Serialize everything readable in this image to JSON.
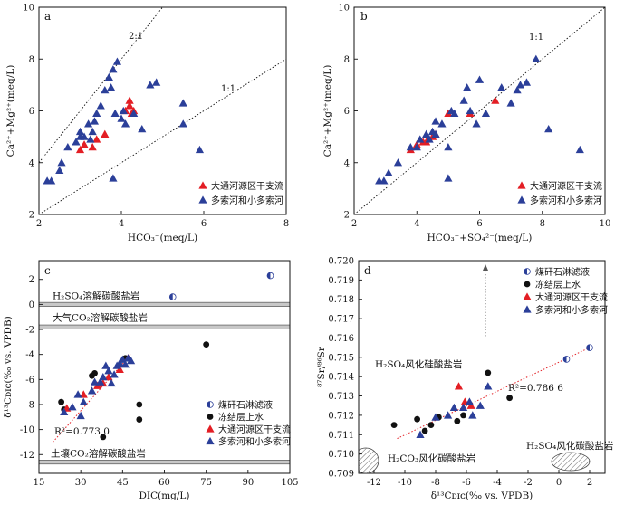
{
  "figure": {
    "colors": {
      "red": "#e31e24",
      "blue": "#2b3f99",
      "black": "#111111",
      "trend": "#e31e24"
    }
  },
  "chart_data": [
    {
      "type": "scatter",
      "panel": "a",
      "xlabel": "HCO₃⁻(meq/L)",
      "ylabel": "Ca²⁺+Mg²⁺(meq/L)",
      "xlim": [
        2,
        8
      ],
      "ylim": [
        2,
        10
      ],
      "xticks": [
        "2",
        "4",
        "6",
        "8"
      ],
      "yticks": [
        "2",
        "4",
        "6",
        "8",
        "10"
      ],
      "reference_lines": [
        {
          "label": "2:1",
          "slope": 2,
          "intercept": 0
        },
        {
          "label": "1:1",
          "slope": 1,
          "intercept": 0
        }
      ],
      "legend": [
        "大通河源区干支流",
        "多索河和小多索河"
      ],
      "series": [
        {
          "name": "大通河源区干支流",
          "marker": "triangle",
          "color": "red",
          "x": [
            3.0,
            3.1,
            3.3,
            3.4,
            3.6,
            4.1,
            4.2,
            4.25,
            4.3,
            4.2
          ],
          "y": [
            4.5,
            4.7,
            4.6,
            4.9,
            5.1,
            6.0,
            6.4,
            5.9,
            6.0,
            6.2
          ]
        },
        {
          "name": "多索河和小多索河",
          "marker": "triangle",
          "color": "blue",
          "x": [
            2.2,
            2.3,
            2.5,
            2.55,
            2.7,
            2.9,
            3.0,
            3.0,
            3.1,
            3.2,
            3.25,
            3.3,
            3.35,
            3.4,
            3.5,
            3.6,
            3.7,
            3.75,
            3.8,
            3.8,
            3.85,
            3.9,
            4.0,
            4.05,
            4.1,
            4.3,
            4.5,
            4.7,
            4.85,
            5.5,
            5.5,
            5.9
          ],
          "y": [
            3.3,
            3.3,
            3.7,
            4.0,
            4.6,
            4.8,
            5.0,
            5.2,
            5.0,
            5.5,
            4.9,
            5.2,
            5.6,
            5.9,
            6.2,
            6.8,
            7.3,
            6.9,
            7.6,
            3.4,
            5.9,
            7.9,
            5.7,
            6.0,
            5.5,
            5.9,
            5.3,
            7.0,
            7.1,
            6.3,
            5.5,
            4.5
          ]
        }
      ]
    },
    {
      "type": "scatter",
      "panel": "b",
      "xlabel": "HCO₃⁻+SO₄²⁻(meq/L)",
      "ylabel": "Ca²⁺+Mg²⁺(meq/L)",
      "xlim": [
        2,
        10
      ],
      "ylim": [
        2,
        10
      ],
      "xticks": [
        "2",
        "4",
        "6",
        "8",
        "10"
      ],
      "yticks": [
        "2",
        "4",
        "6",
        "8",
        "10"
      ],
      "reference_lines": [
        {
          "label": "1:1",
          "slope": 1,
          "intercept": 0
        }
      ],
      "legend": [
        "大通河源区干支流",
        "多索河和小多索河"
      ],
      "series": [
        {
          "name": "大通河源区干支流",
          "marker": "triangle",
          "color": "red",
          "x": [
            3.8,
            4.0,
            4.2,
            4.3,
            4.5,
            4.6,
            5.0,
            5.7,
            6.5
          ],
          "y": [
            4.5,
            4.7,
            4.8,
            4.8,
            5.0,
            5.1,
            5.9,
            5.9,
            6.4
          ]
        },
        {
          "name": "多索河和小多索河",
          "marker": "triangle",
          "color": "blue",
          "x": [
            2.8,
            2.95,
            3.1,
            3.4,
            3.8,
            4.0,
            4.1,
            4.3,
            4.4,
            4.5,
            4.6,
            4.6,
            4.8,
            5.0,
            5.0,
            5.1,
            5.2,
            5.5,
            5.6,
            5.7,
            5.9,
            6.0,
            6.2,
            6.7,
            7.0,
            7.2,
            7.3,
            7.5,
            7.8,
            8.2,
            9.2
          ],
          "y": [
            3.3,
            3.3,
            3.6,
            4.0,
            4.6,
            4.6,
            4.9,
            5.1,
            4.9,
            5.2,
            5.1,
            5.6,
            5.5,
            4.6,
            3.4,
            6.0,
            5.9,
            6.4,
            6.9,
            6.0,
            5.5,
            7.2,
            5.9,
            6.9,
            6.3,
            6.8,
            7.0,
            7.1,
            8.0,
            5.3,
            4.5
          ]
        }
      ]
    },
    {
      "type": "scatter",
      "panel": "c",
      "xlabel": "DIC(mg/L)",
      "ylabel": "δ¹³Cᴅɪᴄ(‰ vs. VPDB)",
      "xlim": [
        15,
        105
      ],
      "ylim": [
        -13.5,
        3.5
      ],
      "xticks": [
        "15",
        "30",
        "45",
        "60",
        "75",
        "90",
        "105"
      ],
      "yticks": [
        "-12",
        "-10",
        "-8",
        "-6",
        "-4",
        "-2",
        "0",
        "2"
      ],
      "bands": [
        {
          "label": "H₂SO₄溶解碳酸盐岩",
          "y": 0.0
        },
        {
          "label": "大气CO₂溶解碳酸盐岩",
          "y": -1.8
        },
        {
          "label": "土壤CO₂溶解碳酸盐岩",
          "y": -12.6
        }
      ],
      "trendline": {
        "r2": "R²=0.773 0",
        "x": [
          20,
          48
        ],
        "y": [
          -11.0,
          -4.0
        ]
      },
      "legend": [
        "煤矸石淋滤液",
        "冻结层上水",
        "大通河源区干支流",
        "多索河和小多索河"
      ],
      "series": [
        {
          "name": "煤矸石淋滤液",
          "marker": "halfcircle",
          "color": "blue",
          "x": [
            63,
            98
          ],
          "y": [
            0.6,
            2.3
          ]
        },
        {
          "name": "冻结层上水",
          "marker": "circle",
          "color": "black",
          "x": [
            23,
            24,
            34,
            35,
            38,
            46,
            51,
            51,
            75
          ],
          "y": [
            -7.8,
            -8.4,
            -5.7,
            -5.5,
            -10.6,
            -4.3,
            -8.0,
            -9.2,
            -3.2
          ]
        },
        {
          "name": "大通河源区干支流",
          "marker": "triangle",
          "color": "red",
          "x": [
            25,
            31,
            36,
            38,
            40,
            44,
            47
          ],
          "y": [
            -8.3,
            -7.2,
            -6.5,
            -6.3,
            -5.8,
            -5.2,
            -4.3
          ]
        },
        {
          "name": "多索河和小多索河",
          "marker": "triangle",
          "color": "blue",
          "x": [
            24,
            27,
            29,
            30,
            31,
            34,
            35,
            37,
            38,
            39,
            40,
            41,
            42,
            43,
            44,
            45,
            46,
            47,
            48
          ],
          "y": [
            -8.6,
            -8.2,
            -7.2,
            -8.9,
            -7.8,
            -6.9,
            -6.2,
            -6.2,
            -5.8,
            -4.9,
            -5.3,
            -6.3,
            -5.6,
            -4.9,
            -4.7,
            -4.4,
            -4.8,
            -4.3,
            -4.5
          ]
        }
      ]
    },
    {
      "type": "scatter",
      "panel": "d",
      "xlabel": "δ¹³Cᴅɪᴄ(‰ vs. VPDB)",
      "ylabel": "⁸⁷Sr/⁸⁶Sr",
      "xlim": [
        -13,
        3
      ],
      "ylim": [
        0.709,
        0.72
      ],
      "xticks": [
        "-12",
        "-10",
        "-8",
        "-6",
        "-4",
        "-2",
        "0",
        "2"
      ],
      "yticks": [
        "0.709",
        "0.710",
        "0.711",
        "0.712",
        "0.713",
        "0.714",
        "0.715",
        "0.716",
        "0.717",
        "0.718",
        "0.719",
        "0.720"
      ],
      "annotations": [
        {
          "label": "H₂SO₄风化硅酸盐岩"
        },
        {
          "label": "H₂CO₃风化碳酸盐岩"
        },
        {
          "label": "H₂SO₄风化碳酸盐岩"
        }
      ],
      "threshold_y": 0.716,
      "trendline": {
        "r2": "R²=0.786 6",
        "x": [
          -10.5,
          2.0
        ],
        "y": [
          0.7108,
          0.7155
        ]
      },
      "legend": [
        "煤矸石淋滤液",
        "冻结层上水",
        "大通河源区干支流",
        "多索河和小多索河"
      ],
      "series": [
        {
          "name": "煤矸石淋滤液",
          "marker": "halfcircle",
          "color": "blue",
          "x": [
            0.5,
            2.0
          ],
          "y": [
            0.7149,
            0.7155
          ]
        },
        {
          "name": "冻结层上水",
          "marker": "circle",
          "color": "black",
          "x": [
            -10.7,
            -9.2,
            -8.7,
            -8.3,
            -7.8,
            -6.6,
            -6.2,
            -4.6,
            -3.2
          ],
          "y": [
            0.7115,
            0.7118,
            0.7112,
            0.7115,
            0.7119,
            0.7117,
            0.712,
            0.7142,
            0.7129
          ]
        },
        {
          "name": "大通河源区干支流",
          "marker": "triangle",
          "color": "red",
          "x": [
            -6.5,
            -6.1,
            -5.7
          ],
          "y": [
            0.7135,
            0.7127,
            0.7125
          ]
        },
        {
          "name": "多索河和小多索河",
          "marker": "triangle",
          "color": "blue",
          "x": [
            -9.0,
            -8.0,
            -7.2,
            -6.8,
            -6.2,
            -5.8,
            -5.6,
            -5.1,
            -4.6
          ],
          "y": [
            0.711,
            0.7119,
            0.712,
            0.7124,
            0.7124,
            0.7127,
            0.712,
            0.7125,
            0.7135
          ]
        }
      ]
    }
  ]
}
